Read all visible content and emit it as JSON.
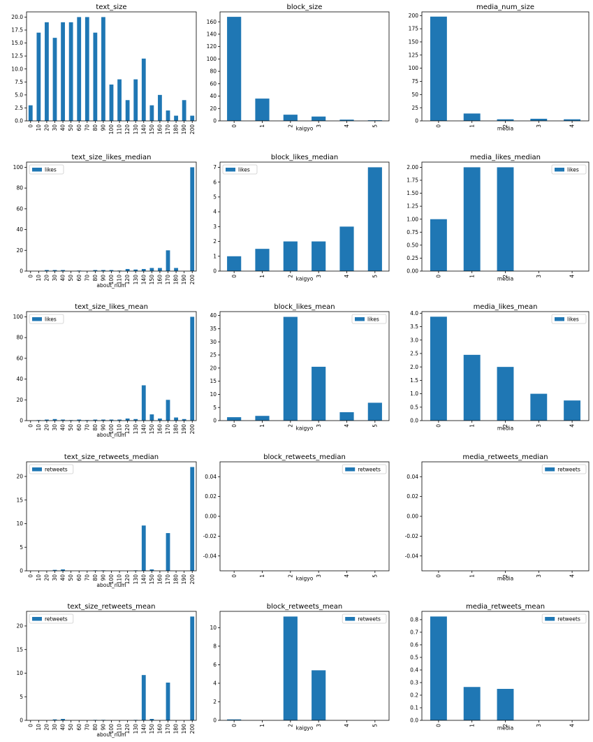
{
  "chart_data": [
    {
      "title": "text_size",
      "type": "bar",
      "xlabel": "",
      "ylabel": "",
      "series": [
        {
          "name": "",
          "values": [
            3,
            17,
            19,
            16,
            19,
            19,
            20,
            20,
            17,
            20,
            7,
            8,
            4,
            8,
            12,
            3,
            5,
            2,
            1,
            4,
            1
          ]
        }
      ],
      "categories": [
        "0",
        "10",
        "20",
        "30",
        "40",
        "50",
        "60",
        "70",
        "80",
        "90",
        "100",
        "110",
        "120",
        "130",
        "140",
        "150",
        "160",
        "170",
        "180",
        "190",
        "200"
      ],
      "ylim": [
        0,
        21
      ],
      "yticks": [
        0,
        2.5,
        5,
        7.5,
        10,
        12.5,
        15,
        17.5,
        20
      ],
      "ytick_labels": [
        "0.0",
        "2.5",
        "5.0",
        "7.5",
        "10.0",
        "12.5",
        "15.0",
        "17.5",
        "20.0"
      ],
      "legend": null
    },
    {
      "title": "block_size",
      "type": "bar",
      "xlabel": "kaigyo",
      "ylabel": "",
      "series": [
        {
          "name": "",
          "values": [
            168,
            36,
            10,
            7,
            2,
            1
          ]
        }
      ],
      "categories": [
        "0",
        "1",
        "2",
        "3",
        "4",
        "5"
      ],
      "ylim": [
        0,
        176
      ],
      "yticks": [
        0,
        20,
        40,
        60,
        80,
        100,
        120,
        140,
        160
      ],
      "ytick_labels": [
        "0",
        "20",
        "40",
        "60",
        "80",
        "100",
        "120",
        "140",
        "160"
      ],
      "legend": null
    },
    {
      "title": "media_num_size",
      "type": "bar",
      "xlabel": "media",
      "ylabel": "",
      "series": [
        {
          "name": "",
          "values": [
            198,
            14,
            3,
            4,
            3
          ]
        }
      ],
      "categories": [
        "0",
        "1",
        "2",
        "3",
        "4"
      ],
      "ylim": [
        0,
        207
      ],
      "yticks": [
        0,
        25,
        50,
        75,
        100,
        125,
        150,
        175,
        200
      ],
      "ytick_labels": [
        "0",
        "25",
        "50",
        "75",
        "100",
        "125",
        "150",
        "175",
        "200"
      ],
      "legend": null
    },
    {
      "title": "text_size_likes_median",
      "type": "bar",
      "xlabel": "about_num",
      "ylabel": "",
      "series": [
        {
          "name": "likes",
          "values": [
            0,
            0,
            1,
            1,
            1,
            0,
            0.5,
            0,
            1,
            1,
            1,
            0.5,
            2,
            1.5,
            2,
            3,
            3,
            20,
            3,
            0,
            100
          ]
        }
      ],
      "categories": [
        "0",
        "10",
        "20",
        "30",
        "40",
        "50",
        "60",
        "70",
        "80",
        "90",
        "100",
        "110",
        "120",
        "130",
        "140",
        "150",
        "160",
        "170",
        "180",
        "190",
        "200"
      ],
      "ylim": [
        0,
        105
      ],
      "yticks": [
        0,
        20,
        40,
        60,
        80,
        100
      ],
      "ytick_labels": [
        "0",
        "20",
        "40",
        "60",
        "80",
        "100"
      ],
      "legend": "upper left"
    },
    {
      "title": "block_likes_median",
      "type": "bar",
      "xlabel": "kaigyo",
      "ylabel": "",
      "series": [
        {
          "name": "likes",
          "values": [
            1,
            1.5,
            2,
            2,
            3,
            7
          ]
        }
      ],
      "categories": [
        "0",
        "1",
        "2",
        "3",
        "4",
        "5"
      ],
      "ylim": [
        0,
        7.35
      ],
      "yticks": [
        0,
        1,
        2,
        3,
        4,
        5,
        6,
        7
      ],
      "ytick_labels": [
        "0",
        "1",
        "2",
        "3",
        "4",
        "5",
        "6",
        "7"
      ],
      "legend": "upper left"
    },
    {
      "title": "media_likes_median",
      "type": "bar",
      "xlabel": "media",
      "ylabel": "",
      "series": [
        {
          "name": "likes",
          "values": [
            1,
            2,
            2,
            0,
            0
          ]
        }
      ],
      "categories": [
        "0",
        "1",
        "2",
        "3",
        "4"
      ],
      "ylim": [
        0,
        2.1
      ],
      "yticks": [
        0,
        0.25,
        0.5,
        0.75,
        1,
        1.25,
        1.5,
        1.75,
        2
      ],
      "ytick_labels": [
        "0.00",
        "0.25",
        "0.50",
        "0.75",
        "1.00",
        "1.25",
        "1.50",
        "1.75",
        "2.00"
      ],
      "legend": "upper right"
    },
    {
      "title": "text_size_likes_mean",
      "type": "bar",
      "xlabel": "about_num",
      "ylabel": "",
      "series": [
        {
          "name": "likes",
          "values": [
            0,
            0.5,
            1,
            1.5,
            1,
            0.5,
            1,
            0.5,
            1,
            1,
            1,
            1,
            2,
            1.5,
            34,
            6,
            2,
            20,
            3,
            1.5,
            100
          ]
        }
      ],
      "categories": [
        "0",
        "10",
        "20",
        "30",
        "40",
        "50",
        "60",
        "70",
        "80",
        "90",
        "100",
        "110",
        "120",
        "130",
        "140",
        "150",
        "160",
        "170",
        "180",
        "190",
        "200"
      ],
      "ylim": [
        0,
        105
      ],
      "yticks": [
        0,
        20,
        40,
        60,
        80,
        100
      ],
      "ytick_labels": [
        "0",
        "20",
        "40",
        "60",
        "80",
        "100"
      ],
      "legend": "upper left"
    },
    {
      "title": "block_likes_mean",
      "type": "bar",
      "xlabel": "kaigyo",
      "ylabel": "",
      "series": [
        {
          "name": "likes",
          "values": [
            1.3,
            1.8,
            39.5,
            20.5,
            3.2,
            6.8
          ]
        }
      ],
      "categories": [
        "0",
        "1",
        "2",
        "3",
        "4",
        "5"
      ],
      "ylim": [
        0,
        41.5
      ],
      "yticks": [
        0,
        5,
        10,
        15,
        20,
        25,
        30,
        35,
        40
      ],
      "ytick_labels": [
        "0",
        "5",
        "10",
        "15",
        "20",
        "25",
        "30",
        "35",
        "40"
      ],
      "legend": "upper right"
    },
    {
      "title": "media_likes_mean",
      "type": "bar",
      "xlabel": "media",
      "ylabel": "",
      "series": [
        {
          "name": "likes",
          "values": [
            3.87,
            2.45,
            2.0,
            1.0,
            0.75
          ]
        }
      ],
      "categories": [
        "0",
        "1",
        "2",
        "3",
        "4"
      ],
      "ylim": [
        0,
        4.06
      ],
      "yticks": [
        0,
        0.5,
        1,
        1.5,
        2,
        2.5,
        3,
        3.5,
        4
      ],
      "ytick_labels": [
        "0.0",
        "0.5",
        "1.0",
        "1.5",
        "2.0",
        "2.5",
        "3.0",
        "3.5",
        "4.0"
      ],
      "legend": "upper right"
    },
    {
      "title": "text_size_retweets_median",
      "type": "bar",
      "xlabel": "about_num",
      "ylabel": "",
      "series": [
        {
          "name": "retweets",
          "values": [
            0,
            0,
            0,
            0.2,
            0.3,
            0,
            0,
            0,
            0.1,
            0.1,
            0,
            0,
            0,
            0.1,
            9.6,
            0.3,
            0,
            8,
            0,
            0,
            22
          ]
        }
      ],
      "categories": [
        "0",
        "10",
        "20",
        "30",
        "40",
        "50",
        "60",
        "70",
        "80",
        "90",
        "100",
        "110",
        "120",
        "130",
        "140",
        "150",
        "160",
        "170",
        "180",
        "190",
        "200"
      ],
      "ylim": [
        0,
        23.1
      ],
      "yticks": [
        0,
        5,
        10,
        15,
        20
      ],
      "ytick_labels": [
        "0",
        "5",
        "10",
        "15",
        "20"
      ],
      "legend": "upper left"
    },
    {
      "title": "block_retweets_median",
      "type": "bar",
      "xlabel": "kaigyo",
      "ylabel": "",
      "series": [
        {
          "name": "retweets",
          "values": [
            0,
            0,
            0,
            0,
            0,
            0
          ]
        }
      ],
      "categories": [
        "0",
        "1",
        "2",
        "3",
        "4",
        "5"
      ],
      "ylim": [
        -0.055,
        0.055
      ],
      "yticks": [
        -0.04,
        -0.02,
        0,
        0.02,
        0.04
      ],
      "ytick_labels": [
        "-0.04",
        "-0.02",
        "0.00",
        "0.02",
        "0.04"
      ],
      "legend": "upper right"
    },
    {
      "title": "media_retweets_median",
      "type": "bar",
      "xlabel": "media",
      "ylabel": "",
      "series": [
        {
          "name": "retweets",
          "values": [
            0,
            0,
            0,
            0,
            0
          ]
        }
      ],
      "categories": [
        "0",
        "1",
        "2",
        "3",
        "4"
      ],
      "ylim": [
        -0.055,
        0.055
      ],
      "yticks": [
        -0.04,
        -0.02,
        0,
        0.02,
        0.04
      ],
      "ytick_labels": [
        "-0.04",
        "-0.02",
        "0.00",
        "0.02",
        "0.04"
      ],
      "legend": "upper right"
    },
    {
      "title": "text_size_retweets_mean",
      "type": "bar",
      "xlabel": "about_num",
      "ylabel": "",
      "series": [
        {
          "name": "retweets",
          "values": [
            0,
            0,
            0,
            0.2,
            0.3,
            0,
            0,
            0,
            0.1,
            0.1,
            0,
            0,
            0,
            0.1,
            9.6,
            0.3,
            0,
            8,
            0,
            0,
            22
          ]
        }
      ],
      "categories": [
        "0",
        "10",
        "20",
        "30",
        "40",
        "50",
        "60",
        "70",
        "80",
        "90",
        "100",
        "110",
        "120",
        "130",
        "140",
        "150",
        "160",
        "170",
        "180",
        "190",
        "200"
      ],
      "ylim": [
        0,
        23.1
      ],
      "yticks": [
        0,
        5,
        10,
        15,
        20
      ],
      "ytick_labels": [
        "0",
        "5",
        "10",
        "15",
        "20"
      ],
      "legend": "upper left"
    },
    {
      "title": "block_retweets_mean",
      "type": "bar",
      "xlabel": "kaigyo",
      "ylabel": "",
      "series": [
        {
          "name": "retweets",
          "values": [
            0.1,
            0,
            11.2,
            5.4,
            0,
            0
          ]
        }
      ],
      "categories": [
        "0",
        "1",
        "2",
        "3",
        "4",
        "5"
      ],
      "ylim": [
        0,
        11.76
      ],
      "yticks": [
        0,
        2,
        4,
        6,
        8,
        10
      ],
      "ytick_labels": [
        "0",
        "2",
        "4",
        "6",
        "8",
        "10"
      ],
      "legend": "upper right"
    },
    {
      "title": "media_retweets_mean",
      "type": "bar",
      "xlabel": "media",
      "ylabel": "",
      "series": [
        {
          "name": "retweets",
          "values": [
            0.825,
            0.265,
            0.25,
            0,
            0
          ]
        }
      ],
      "categories": [
        "0",
        "1",
        "2",
        "3",
        "4"
      ],
      "ylim": [
        0,
        0.866
      ],
      "yticks": [
        0,
        0.1,
        0.2,
        0.3,
        0.4,
        0.5,
        0.6,
        0.7,
        0.8
      ],
      "ytick_labels": [
        "0.0",
        "0.1",
        "0.2",
        "0.3",
        "0.4",
        "0.5",
        "0.6",
        "0.7",
        "0.8"
      ],
      "legend": "upper right"
    }
  ],
  "style": {
    "bar_color": "#1f77b4"
  }
}
